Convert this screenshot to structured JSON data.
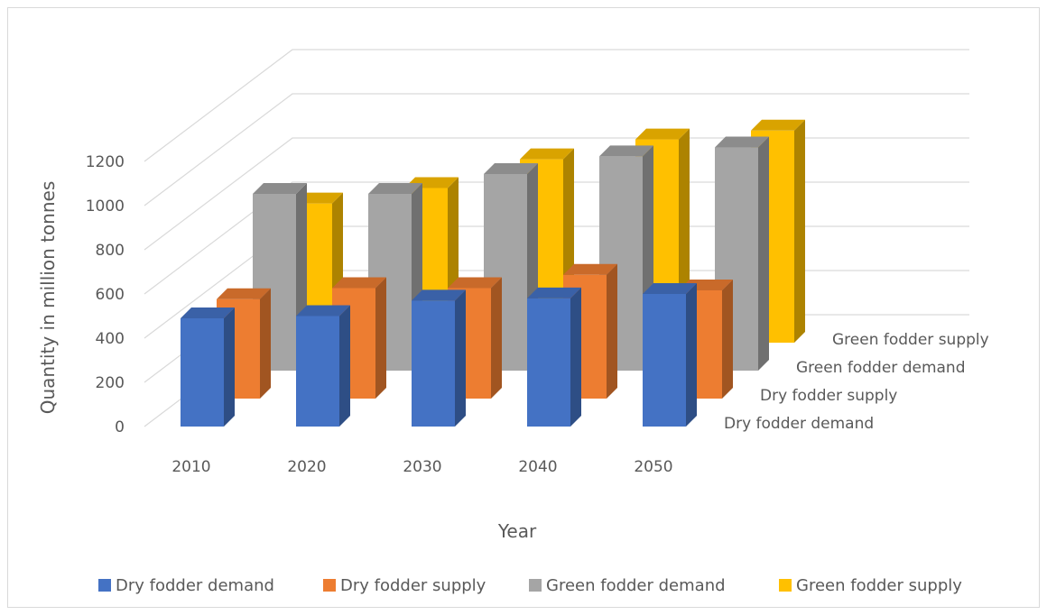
{
  "chart_data": {
    "type": "bar",
    "subtype": "3d-column",
    "title": "",
    "xlabel": "Year",
    "ylabel": "Quantity in million tonnes",
    "categories": [
      "2010",
      "2020",
      "2030",
      "2040",
      "2050"
    ],
    "ylim": [
      0,
      1200
    ],
    "yticks": [
      "0",
      "200",
      "400",
      "600",
      "800",
      "1000",
      "1200"
    ],
    "grid": true,
    "legend_position": "bottom",
    "series": [
      {
        "name": "Dry fodder demand",
        "color": "#4472C4",
        "values": [
          490,
          500,
          570,
          580,
          600
        ]
      },
      {
        "name": "Dry fodder supply",
        "color": "#ED7D31",
        "values": [
          450,
          500,
          500,
          560,
          490
        ]
      },
      {
        "name": "Green fodder demand",
        "color": "#A5A5A5",
        "values": [
          800,
          800,
          890,
          970,
          1010
        ]
      },
      {
        "name": "Green fodder supply",
        "color": "#FFC000",
        "values": [
          630,
          700,
          830,
          920,
          960
        ]
      }
    ]
  }
}
